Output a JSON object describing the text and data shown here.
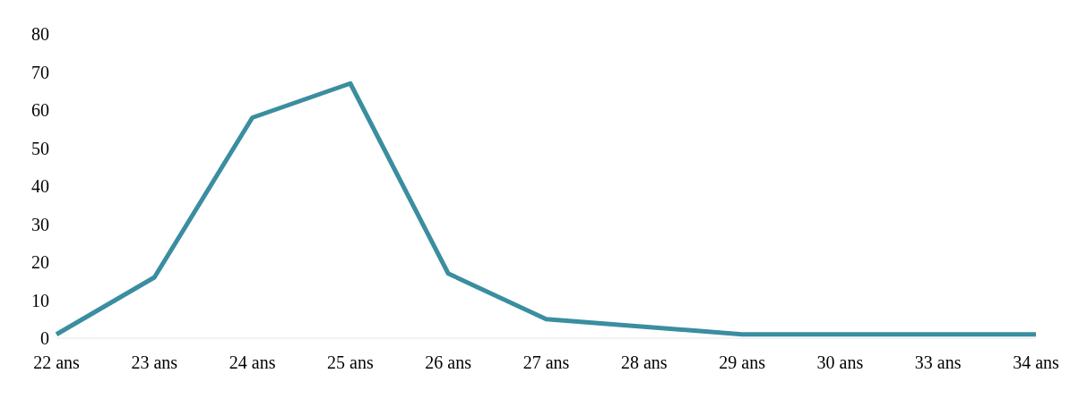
{
  "chart_data": {
    "type": "line",
    "categories": [
      "22 ans",
      "23 ans",
      "24 ans",
      "25 ans",
      "26 ans",
      "27 ans",
      "28 ans",
      "29 ans",
      "30 ans",
      "33 ans",
      "34 ans"
    ],
    "series": [
      {
        "color": "#3a8ea0",
        "values": [
          1,
          16,
          58,
          67,
          17,
          5,
          3,
          1,
          1,
          1,
          1
        ]
      }
    ],
    "ylim": [
      0,
      80
    ],
    "yticks": [
      0,
      10,
      20,
      30,
      40,
      50,
      60,
      70,
      80
    ],
    "grid": false,
    "legend": false,
    "marker": "none",
    "line_style": "solid"
  }
}
